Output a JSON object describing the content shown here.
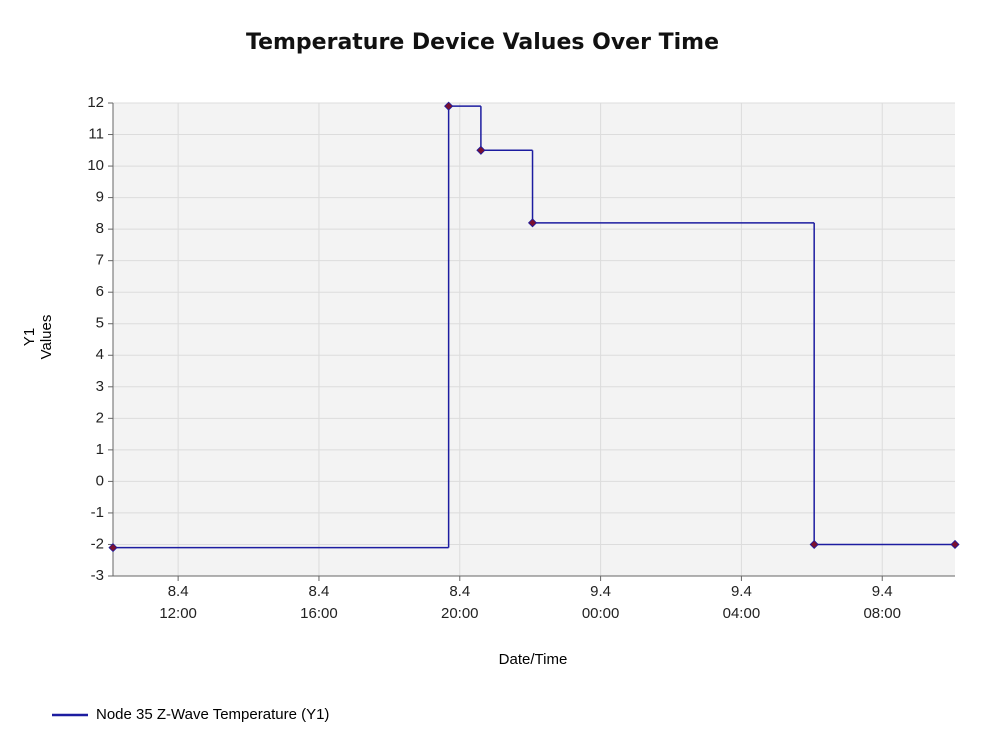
{
  "chart_data": {
    "type": "step",
    "title": "Temperature Device Values Over Time",
    "xlabel": "Date/Time",
    "ylabel": "Y1 Values",
    "x": [
      "8.4 10:09",
      "8.4 19:41",
      "8.4 20:36",
      "8.4 22:04",
      "9.4 06:04",
      "9.4 10:04"
    ],
    "series": [
      {
        "name": "Node 35 Z-Wave Temperature (Y1)",
        "color": "#1c1ca0",
        "values": [
          -2.1,
          11.9,
          10.5,
          8.2,
          -2,
          -2
        ]
      }
    ],
    "xlim": [
      "8.4 10:09",
      "9.4 10:04"
    ],
    "xticks": [
      "8.4 12:00",
      "8.4 16:00",
      "8.4 20:00",
      "9.4 00:00",
      "9.4 04:00",
      "9.4 08:00"
    ],
    "ylim": [
      -3,
      12
    ],
    "yticks": [
      -3,
      -2,
      -1,
      0,
      1,
      2,
      3,
      4,
      5,
      6,
      7,
      8,
      9,
      10,
      11,
      12
    ],
    "grid": true,
    "marker_color": "#7a1030",
    "legend": "bottom-left"
  }
}
